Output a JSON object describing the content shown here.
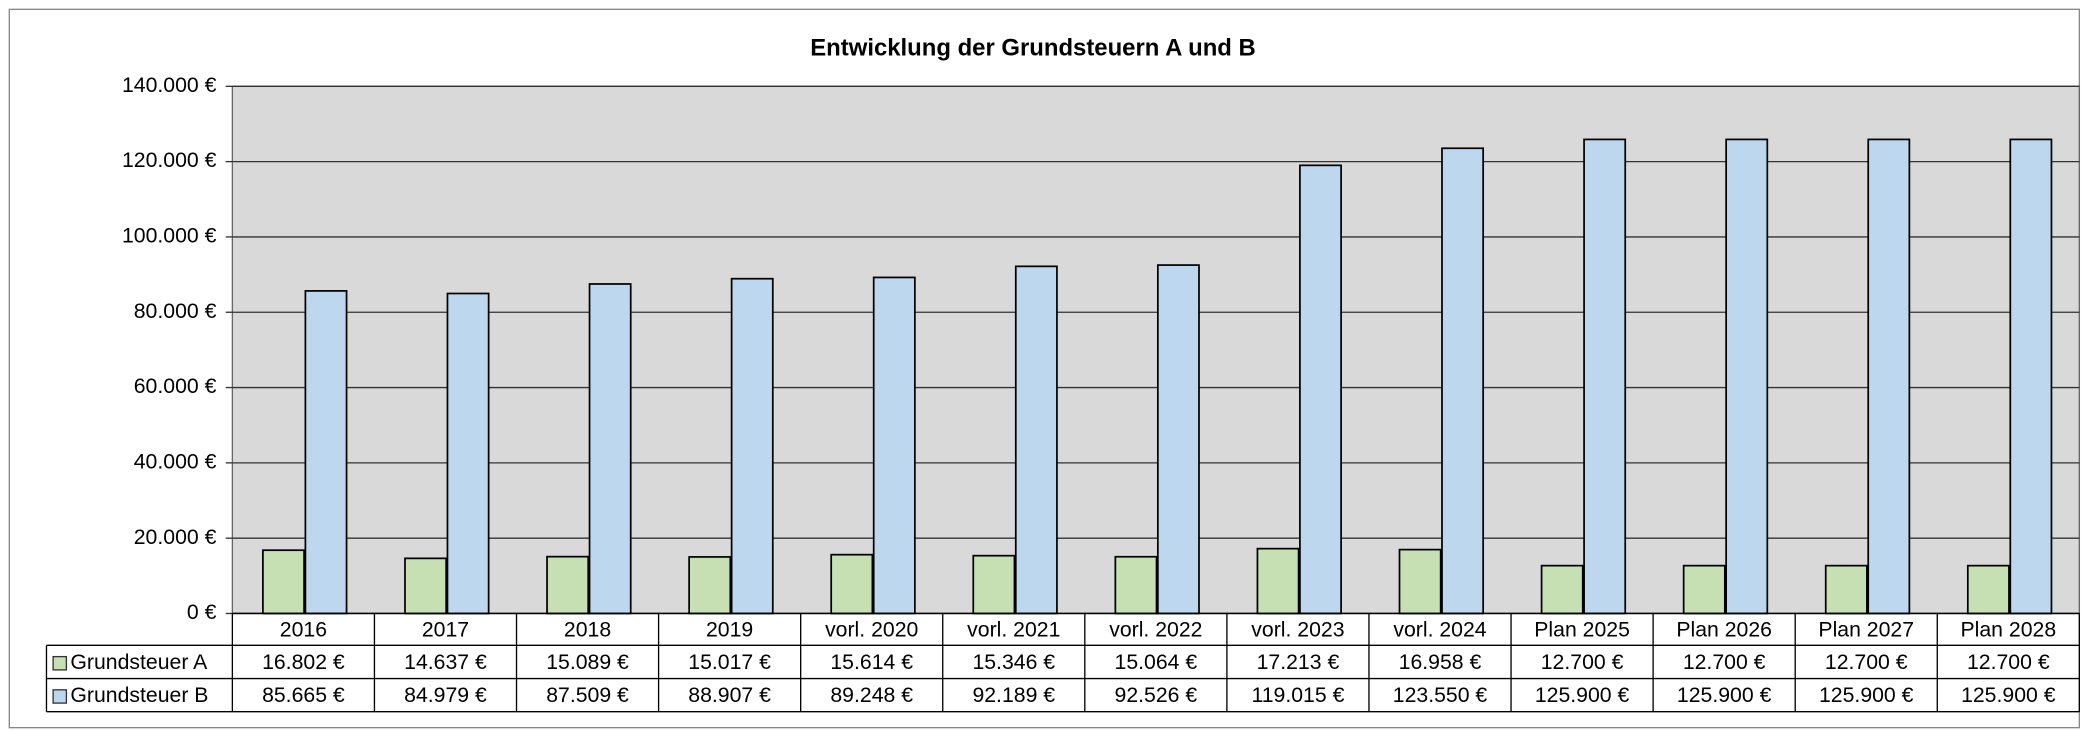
{
  "chart_data": {
    "type": "bar",
    "title": "Entwicklung der Grundsteuern A und B",
    "categories": [
      "2016",
      "2017",
      "2018",
      "2019",
      "vorl. 2020",
      "vorl. 2021",
      "vorl. 2022",
      "vorl. 2023",
      "vorl. 2024",
      "Plan 2025",
      "Plan 2026",
      "Plan 2027",
      "Plan 2028"
    ],
    "series": [
      {
        "name": "Grundsteuer A",
        "color": "#c6e0b4",
        "values": [
          16802,
          14637,
          15089,
          15017,
          15614,
          15346,
          15064,
          17213,
          16958,
          12700,
          12700,
          12700,
          12700
        ],
        "value_labels": [
          "16.802 €",
          "14.637 €",
          "15.089 €",
          "15.017 €",
          "15.614 €",
          "15.346 €",
          "15.064 €",
          "17.213 €",
          "16.958 €",
          "12.700 €",
          "12.700 €",
          "12.700 €",
          "12.700 €"
        ]
      },
      {
        "name": "Grundsteuer B",
        "color": "#bdd7ee",
        "values": [
          85665,
          84979,
          87509,
          88907,
          89248,
          92189,
          92526,
          119015,
          123550,
          125900,
          125900,
          125900,
          125900
        ],
        "value_labels": [
          "85.665 €",
          "84.979 €",
          "87.509 €",
          "88.907 €",
          "89.248 €",
          "92.189 €",
          "92.526 €",
          "119.015 €",
          "123.550 €",
          "125.900 €",
          "125.900 €",
          "125.900 €",
          "125.900 €"
        ]
      }
    ],
    "ylim": [
      0,
      140000
    ],
    "yticks": [
      {
        "value": 0,
        "label": "0 €"
      },
      {
        "value": 20000,
        "label": "20.000 €"
      },
      {
        "value": 40000,
        "label": "40.000 €"
      },
      {
        "value": 60000,
        "label": "60.000 €"
      },
      {
        "value": 80000,
        "label": "80.000 €"
      },
      {
        "value": 100000,
        "label": "100.000 €"
      },
      {
        "value": 120000,
        "label": "120.000 €"
      },
      {
        "value": 140000,
        "label": "140.000 €"
      }
    ],
    "grid": true,
    "plot_background": "#d9d9d9"
  }
}
